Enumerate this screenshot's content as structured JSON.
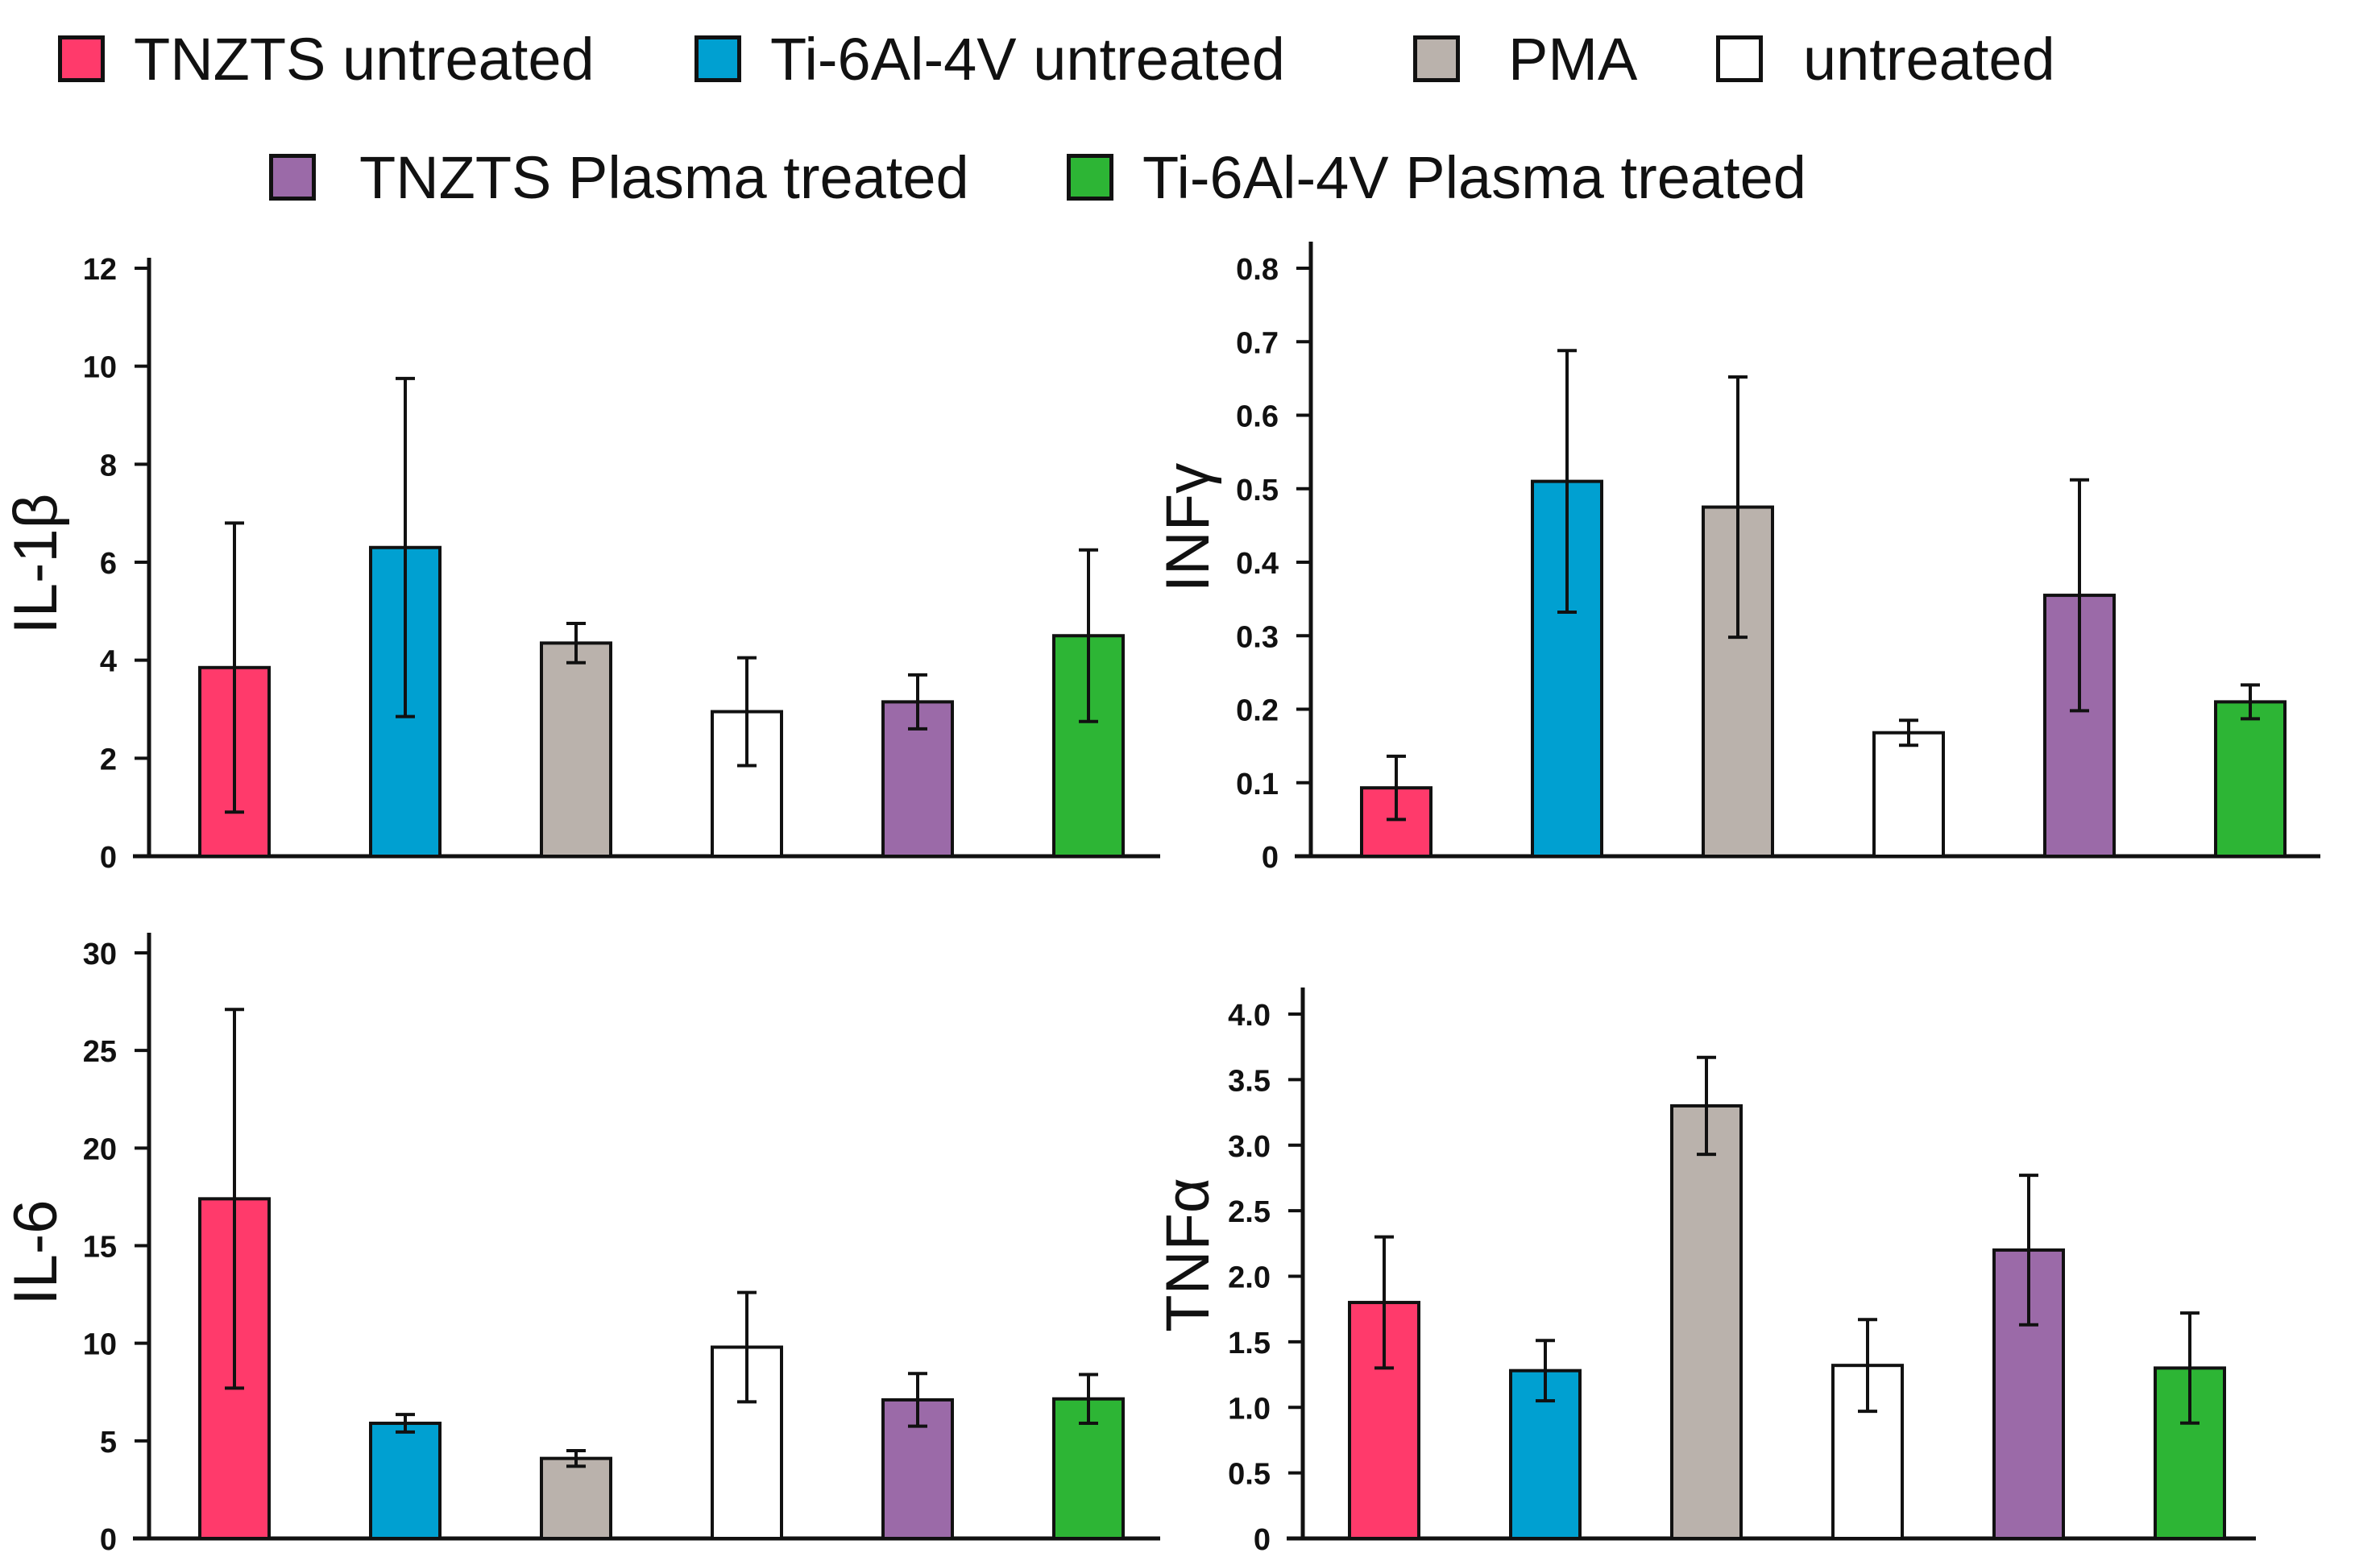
{
  "legend": {
    "items": [
      {
        "label": "TNZTS untreated",
        "color": "#ff3a6b"
      },
      {
        "label": "Ti-6Al-4V untreated",
        "color": "#00a0d1"
      },
      {
        "label": "PMA",
        "color": "#bab2ac"
      },
      {
        "label": "untreated",
        "color": "#ffffff"
      },
      {
        "label": "TNZTS Plasma treated",
        "color": "#9b6aa8"
      },
      {
        "label": "Ti-6Al-4V Plasma treated",
        "color": "#2db535"
      }
    ]
  },
  "chart_data": [
    {
      "type": "bar",
      "ylabel": "IL-1β",
      "ylim": [
        0,
        12
      ],
      "yticks": [
        0,
        2,
        4,
        6,
        8,
        10,
        12
      ],
      "tick_labels": [
        "0",
        "2",
        "4",
        "6",
        "8",
        "10",
        "12"
      ],
      "categories": [
        "TNZTS untreated",
        "Ti-6Al-4V untreated",
        "PMA",
        "untreated",
        "TNZTS Plasma treated",
        "Ti-6Al-4V Plasma treated"
      ],
      "values": [
        3.85,
        6.3,
        4.35,
        2.95,
        3.15,
        4.5
      ],
      "errors": [
        2.95,
        3.45,
        0.4,
        1.1,
        0.55,
        1.75
      ]
    },
    {
      "type": "bar",
      "ylabel": "INFγ",
      "ylim": [
        0,
        0.8
      ],
      "yticks": [
        0,
        0.1,
        0.2,
        0.3,
        0.4,
        0.5,
        0.6,
        0.7,
        0.8
      ],
      "tick_labels": [
        "0",
        "0.1",
        "0.2",
        "0.3",
        "0.4",
        "0.5",
        "0.6",
        "0.7",
        "0.8"
      ],
      "categories": [
        "TNZTS untreated",
        "Ti-6Al-4V untreated",
        "PMA",
        "untreated",
        "TNZTS Plasma treated",
        "Ti-6Al-4V Plasma treated"
      ],
      "values": [
        0.093,
        0.51,
        0.475,
        0.168,
        0.355,
        0.21
      ],
      "errors": [
        0.043,
        0.178,
        0.177,
        0.017,
        0.157,
        0.023
      ]
    },
    {
      "type": "bar",
      "ylabel": "IL-6",
      "ylim": [
        0,
        30
      ],
      "yticks": [
        0,
        5,
        10,
        15,
        20,
        25,
        30
      ],
      "tick_labels": [
        "0",
        "5",
        "10",
        "15",
        "20",
        "25",
        "30"
      ],
      "categories": [
        "TNZTS untreated",
        "Ti-6Al-4V untreated",
        "PMA",
        "untreated",
        "TNZTS Plasma treated",
        "Ti-6Al-4V Plasma treated"
      ],
      "values": [
        17.4,
        5.9,
        4.1,
        9.8,
        7.1,
        7.15
      ],
      "errors": [
        9.7,
        0.45,
        0.4,
        2.8,
        1.35,
        1.25
      ]
    },
    {
      "type": "bar",
      "ylabel": "TNFα",
      "ylim": [
        0,
        4.0
      ],
      "yticks": [
        0,
        0.5,
        1.0,
        1.5,
        2.0,
        2.5,
        3.0,
        3.5,
        4.0
      ],
      "tick_labels": [
        "0",
        "0.5",
        "1.0",
        "1.5",
        "2.0",
        "2.5",
        "3.0",
        "3.5",
        "4.0"
      ],
      "categories": [
        "TNZTS untreated",
        "Ti-6Al-4V untreated",
        "PMA",
        "untreated",
        "TNZTS Plasma treated",
        "Ti-6Al-4V Plasma treated"
      ],
      "values": [
        1.8,
        1.28,
        3.3,
        1.32,
        2.2,
        1.3
      ],
      "errors": [
        0.5,
        0.23,
        0.37,
        0.35,
        0.57,
        0.42
      ]
    }
  ]
}
